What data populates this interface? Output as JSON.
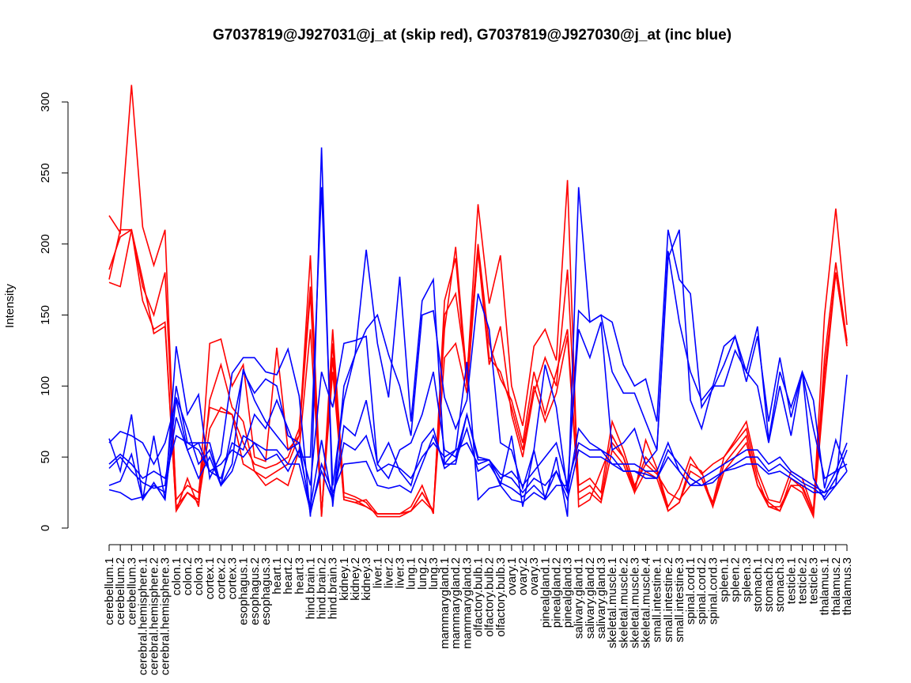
{
  "chart_data": {
    "type": "line",
    "title": "G7037819@J927031@j_at (skip red), G7037819@J927030@j_at (inc blue)",
    "xlabel": "",
    "ylabel": "Intensity",
    "ylim": [
      0,
      300
    ],
    "yticks": [
      0,
      50,
      100,
      150,
      200,
      250,
      300
    ],
    "grid": false,
    "legend": "none",
    "colors": {
      "skip": "#ff0000",
      "inc": "#0000ff",
      "axis": "#000000"
    },
    "categories": [
      "cerebellum.1",
      "cerebellum.2",
      "cerebellum.3",
      "cerebral.hemisphere.1",
      "cerebral.hemisphere.2",
      "cerebral.hemisphere.3",
      "colon.1",
      "colon.2",
      "colon.3",
      "cortex.1",
      "cortex.2",
      "cortex.3",
      "esophagus.1",
      "esophagus.2",
      "esophagus.3",
      "heart.1",
      "heart.2",
      "heart.3",
      "hind.brain.1",
      "hind.brain.2",
      "hind.brain.3",
      "kidney.1",
      "kidney.2",
      "kidney.3",
      "liver.1",
      "liver.2",
      "liver.3",
      "lung.1",
      "lung.2",
      "lung.3",
      "mammarygland.1",
      "mammarygland.2",
      "mammarygland.3",
      "olfactory.bulb.1",
      "olfactory.bulb.2",
      "olfactory.bulb.3",
      "ovary.1",
      "ovary.2",
      "ovary.3",
      "pinealgland.1",
      "pinealgland.2",
      "pinealgland.3",
      "salivary.gland.1",
      "salivary.gland.2",
      "salivary.gland.3",
      "skeletal.muscle.1",
      "skeletal.muscle.2",
      "skeletal.muscle.3",
      "skeletal.muscle.4",
      "small.intestine.1",
      "small.intestine.2",
      "small.intestine.3",
      "spinal.cord.1",
      "spinal.cord.2",
      "spinal.cord.3",
      "spleen.1",
      "spleen.2",
      "spleen.3",
      "stomach.1",
      "stomach.2",
      "stomach.3",
      "testicle.1",
      "testicle.2",
      "testicle.3",
      "thalamus.1",
      "thalamus.2",
      "thalamus.3"
    ],
    "series": [
      {
        "group": "skip",
        "values": [
          220,
          208,
          312,
          212,
          185,
          210,
          15,
          25,
          20,
          130,
          133,
          100,
          115,
          50,
          47,
          127,
          55,
          65,
          192,
          8,
          140,
          25,
          22,
          18,
          8,
          8,
          8,
          12,
          20,
          12,
          140,
          198,
          105,
          228,
          158,
          192,
          100,
          72,
          128,
          140,
          118,
          245,
          15,
          20,
          40,
          60,
          50,
          25,
          62,
          42,
          15,
          28,
          50,
          38,
          45,
          50,
          62,
          75,
          40,
          20,
          18,
          40,
          35,
          12,
          150,
          225,
          143
        ]
      },
      {
        "group": "skip",
        "values": [
          173,
          170,
          210,
          175,
          137,
          142,
          12,
          35,
          15,
          90,
          115,
          85,
          75,
          40,
          35,
          40,
          45,
          65,
          165,
          10,
          120,
          20,
          18,
          20,
          10,
          10,
          10,
          15,
          30,
          10,
          160,
          190,
          100,
          195,
          115,
          142,
          80,
          50,
          95,
          120,
          100,
          182,
          30,
          35,
          25,
          75,
          55,
          30,
          45,
          38,
          25,
          20,
          30,
          35,
          18,
          50,
          60,
          70,
          35,
          15,
          15,
          30,
          30,
          10,
          120,
          187,
          132
        ]
      },
      {
        "group": "skip",
        "values": [
          182,
          205,
          210,
          170,
          150,
          180,
          20,
          30,
          25,
          85,
          82,
          80,
          60,
          45,
          42,
          45,
          50,
          70,
          170,
          8,
          130,
          22,
          20,
          15,
          10,
          10,
          10,
          12,
          25,
          12,
          150,
          165,
          108,
          200,
          130,
          105,
          90,
          60,
          110,
          80,
          110,
          140,
          25,
          30,
          20,
          65,
          50,
          28,
          50,
          40,
          12,
          18,
          45,
          40,
          15,
          45,
          55,
          65,
          30,
          18,
          12,
          35,
          28,
          10,
          110,
          180,
          130
        ]
      },
      {
        "group": "skip",
        "values": [
          175,
          210,
          210,
          160,
          140,
          145,
          12,
          25,
          18,
          70,
          85,
          80,
          45,
          40,
          30,
          35,
          30,
          55,
          140,
          10,
          110,
          20,
          18,
          15,
          10,
          10,
          10,
          12,
          25,
          12,
          120,
          130,
          95,
          195,
          120,
          110,
          85,
          55,
          100,
          75,
          95,
          135,
          20,
          25,
          18,
          55,
          45,
          25,
          40,
          35,
          12,
          18,
          40,
          35,
          15,
          40,
          50,
          60,
          30,
          15,
          12,
          30,
          25,
          8,
          100,
          180,
          128
        ]
      },
      {
        "group": "inc",
        "values": [
          63,
          40,
          80,
          20,
          65,
          20,
          128,
          80,
          94,
          35,
          52,
          109,
          120,
          120,
          110,
          108,
          126,
          93,
          8,
          268,
          15,
          100,
          122,
          196,
          130,
          92,
          177,
          75,
          160,
          175,
          45,
          55,
          117,
          20,
          28,
          30,
          65,
          15,
          55,
          20,
          50,
          8,
          240,
          145,
          150,
          145,
          115,
          100,
          105,
          75,
          210,
          175,
          165,
          85,
          98,
          115,
          135,
          103,
          135,
          75,
          120,
          78,
          110,
          90,
          28,
          62,
          40
        ]
      },
      {
        "group": "inc",
        "values": [
          60,
          68,
          65,
          60,
          45,
          60,
          90,
          55,
          60,
          40,
          35,
          60,
          55,
          80,
          70,
          90,
          70,
          50,
          50,
          240,
          30,
          90,
          122,
          140,
          150,
          122,
          100,
          65,
          150,
          153,
          92,
          70,
          90,
          165,
          140,
          60,
          55,
          28,
          55,
          115,
          85,
          25,
          153,
          145,
          150,
          110,
          95,
          95,
          75,
          55,
          195,
          145,
          110,
          90,
          100,
          128,
          135,
          110,
          142,
          62,
          110,
          85,
          110,
          35,
          20,
          30,
          108
        ]
      },
      {
        "group": "inc",
        "values": [
          42,
          50,
          40,
          32,
          28,
          30,
          100,
          60,
          60,
          60,
          30,
          70,
          110,
          95,
          105,
          100,
          65,
          60,
          30,
          110,
          85,
          130,
          132,
          135,
          45,
          35,
          55,
          60,
          80,
          110,
          55,
          50,
          80,
          50,
          48,
          35,
          40,
          30,
          40,
          50,
          60,
          30,
          140,
          120,
          145,
          55,
          60,
          70,
          45,
          55,
          190,
          210,
          90,
          70,
          100,
          100,
          125,
          110,
          100,
          60,
          100,
          65,
          110,
          70,
          35,
          40,
          45
        ]
      },
      {
        "group": "inc",
        "values": [
          30,
          33,
          52,
          20,
          32,
          20,
          92,
          70,
          45,
          55,
          30,
          45,
          112,
          90,
          75,
          65,
          55,
          60,
          10,
          45,
          25,
          45,
          46,
          47,
          30,
          28,
          30,
          25,
          45,
          65,
          45,
          45,
          80,
          48,
          48,
          30,
          20,
          18,
          25,
          20,
          30,
          30,
          60,
          55,
          55,
          45,
          45,
          45,
          40,
          40,
          60,
          40,
          30,
          35,
          40,
          45,
          50,
          55,
          55,
          45,
          50,
          40,
          35,
          30,
          25,
          40,
          60
        ]
      },
      {
        "group": "inc",
        "values": [
          27,
          25,
          20,
          22,
          30,
          25,
          78,
          55,
          35,
          50,
          30,
          40,
          65,
          60,
          48,
          52,
          40,
          55,
          15,
          62,
          18,
          72,
          65,
          90,
          45,
          60,
          40,
          30,
          60,
          70,
          42,
          48,
          70,
          40,
          45,
          32,
          28,
          22,
          30,
          22,
          40,
          25,
          70,
          60,
          55,
          50,
          40,
          40,
          38,
          35,
          55,
          45,
          35,
          30,
          32,
          40,
          45,
          50,
          50,
          40,
          45,
          38,
          32,
          28,
          22,
          35,
          55
        ]
      },
      {
        "group": "inc",
        "values": [
          45,
          52,
          45,
          35,
          40,
          35,
          65,
          60,
          55,
          40,
          45,
          55,
          50,
          60,
          55,
          55,
          45,
          45,
          12,
          40,
          20,
          60,
          55,
          65,
          40,
          45,
          42,
          35,
          50,
          60,
          50,
          55,
          60,
          45,
          48,
          38,
          35,
          25,
          35,
          30,
          40,
          20,
          55,
          50,
          50,
          45,
          40,
          40,
          35,
          35,
          50,
          40,
          30,
          30,
          35,
          40,
          42,
          45,
          45,
          38,
          40,
          35,
          30,
          25,
          25,
          30,
          40
        ]
      }
    ]
  }
}
